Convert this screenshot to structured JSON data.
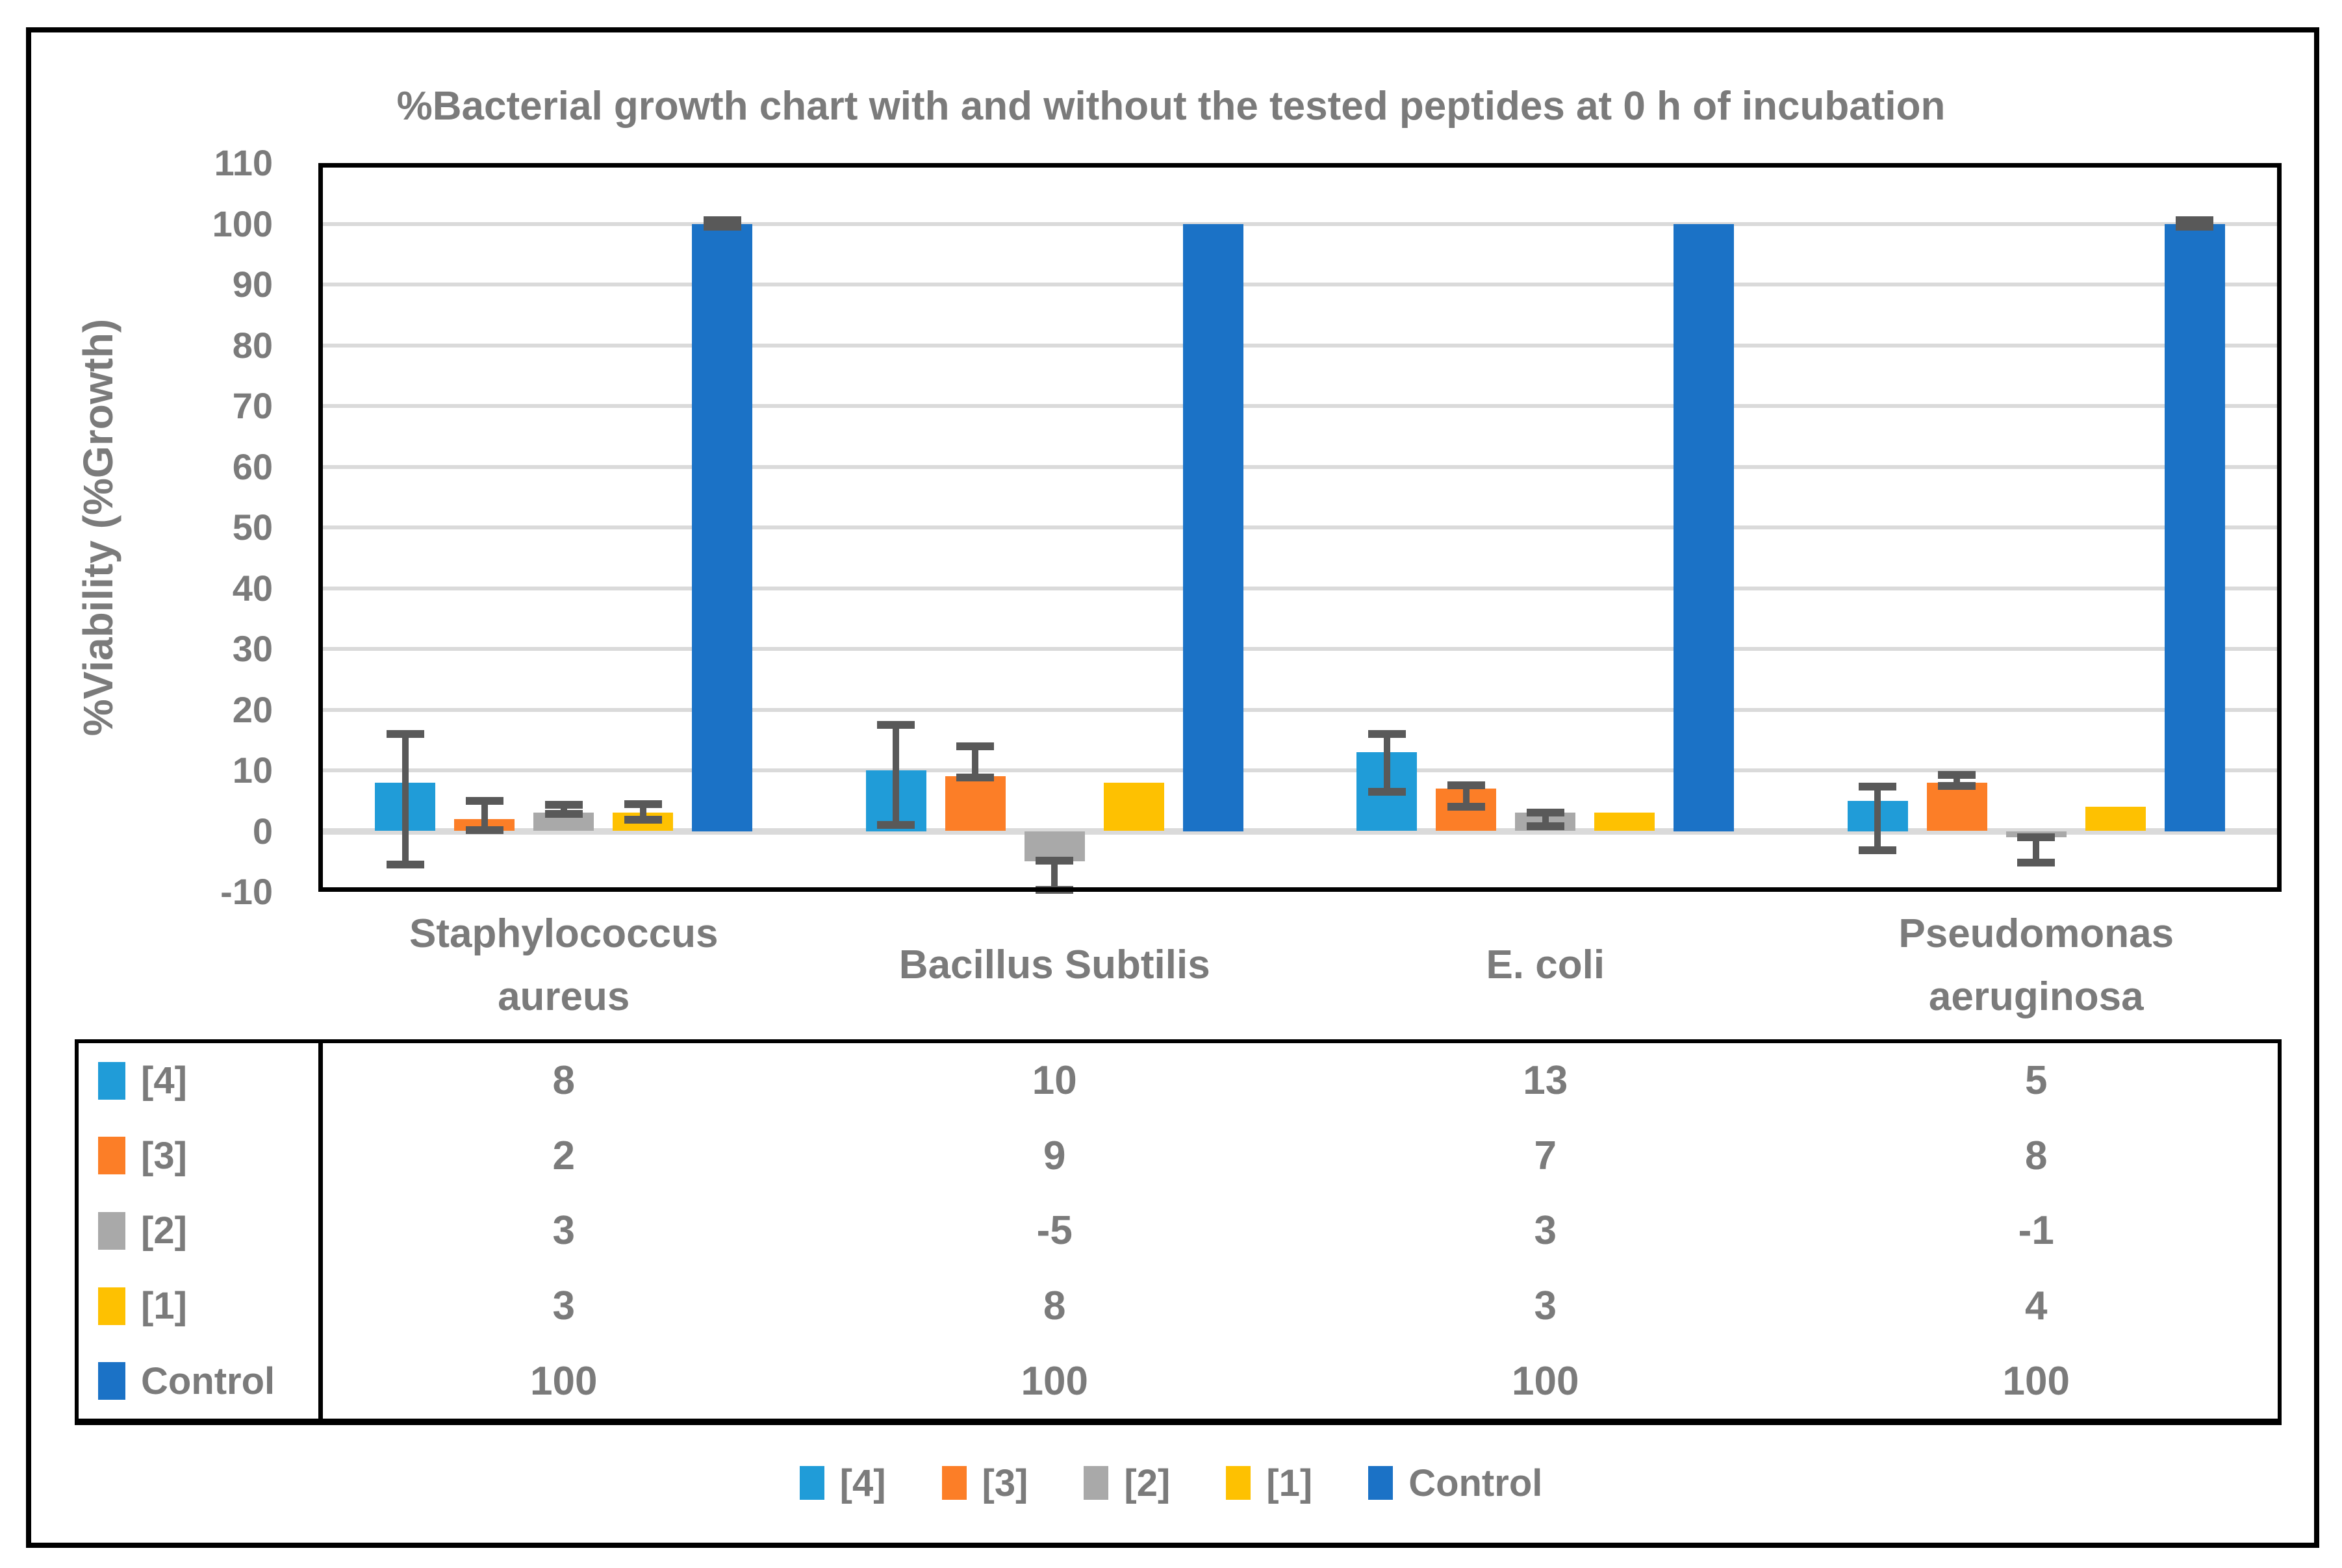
{
  "title": "%Bacterial growth chart with and without the tested peptides at 0 h of incubation",
  "y_axis_label": "%Viability (%Growth)",
  "y_ticks": [
    110,
    100,
    90,
    80,
    70,
    60,
    50,
    40,
    30,
    20,
    10,
    0,
    -10
  ],
  "colors": {
    "background": "#FFFFFF",
    "border": "#000000",
    "grid": "#DADADA",
    "error_bar": "#595959",
    "text": "#7B7B7B",
    "series_4": "#209CD8",
    "series_3": "#FC7E27",
    "series_2": "#A9A9A9",
    "series_1": "#FEC101",
    "series_control": "#1B72C6"
  },
  "chart_data": {
    "type": "bar",
    "title": "%Bacterial growth chart with and without the tested peptides at 0 h of incubation",
    "xlabel": "",
    "ylabel": "%Viability (%Growth)",
    "ylim": [
      -10,
      110
    ],
    "ytick_step": 10,
    "grid": true,
    "legend_position": "bottom",
    "has_data_table": true,
    "categories": [
      "Staphylococcus aureus",
      "Bacillus Subtilis",
      "E. coli",
      "Pseudomonas aeruginosa"
    ],
    "category_lines": [
      [
        "Staphylococcus",
        "aureus"
      ],
      [
        "Bacillus Subtilis"
      ],
      [
        "E. coli"
      ],
      [
        "Pseudomonas",
        "aeruginosa"
      ]
    ],
    "series": [
      {
        "name": "[4]",
        "key": "4",
        "color": "#209CD8",
        "values": [
          8,
          10,
          13,
          5
        ],
        "error_bars": [
          {
            "lo": -5.5,
            "hi": 16
          },
          {
            "lo": 1,
            "hi": 17.5
          },
          {
            "lo": 6.5,
            "hi": 16
          },
          {
            "lo": -3.2,
            "hi": 7.3
          }
        ]
      },
      {
        "name": "[3]",
        "key": "3",
        "color": "#FC7E27",
        "values": [
          2,
          9,
          7,
          8
        ],
        "error_bars": [
          {
            "lo": 0.2,
            "hi": 5
          },
          {
            "lo": 8.8,
            "hi": 14
          },
          {
            "lo": 4,
            "hi": 7.5
          },
          {
            "lo": 7.4,
            "hi": 9.3
          }
        ]
      },
      {
        "name": "[2]",
        "key": "2",
        "color": "#A9A9A9",
        "values": [
          3,
          -5,
          3,
          -1
        ],
        "error_bars": [
          {
            "lo": 2.8,
            "hi": 4.3
          },
          {
            "lo": -9.7,
            "hi": -4.9
          },
          {
            "lo": 0.8,
            "hi": 3
          },
          {
            "lo": -5.2,
            "hi": -1
          }
        ]
      },
      {
        "name": "[1]",
        "key": "1",
        "color": "#FEC101",
        "values": [
          3,
          8,
          3,
          4
        ],
        "error_bars": [
          {
            "lo": 1.9,
            "hi": 4.4
          },
          null,
          null,
          null
        ]
      },
      {
        "name": "Control",
        "key": "control",
        "color": "#1B72C6",
        "values": [
          100,
          100,
          100,
          100
        ],
        "error_bars": [
          {
            "lo": 99.5,
            "hi": 100.6
          },
          null,
          null,
          {
            "lo": 99.5,
            "hi": 100.6
          }
        ]
      }
    ]
  }
}
